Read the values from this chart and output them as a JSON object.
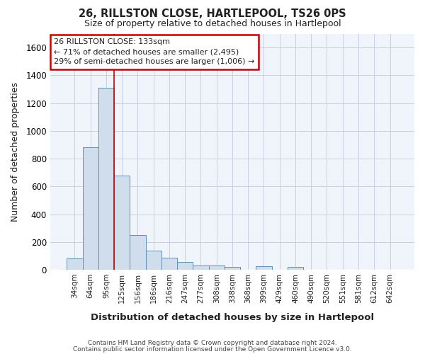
{
  "title": "26, RILLSTON CLOSE, HARTLEPOOL, TS26 0PS",
  "subtitle": "Size of property relative to detached houses in Hartlepool",
  "xlabel": "Distribution of detached houses by size in Hartlepool",
  "ylabel": "Number of detached properties",
  "categories": [
    "34sqm",
    "64sqm",
    "95sqm",
    "125sqm",
    "156sqm",
    "186sqm",
    "216sqm",
    "247sqm",
    "277sqm",
    "308sqm",
    "338sqm",
    "368sqm",
    "399sqm",
    "429sqm",
    "460sqm",
    "490sqm",
    "520sqm",
    "551sqm",
    "581sqm",
    "612sqm",
    "642sqm"
  ],
  "values": [
    80,
    880,
    1310,
    680,
    250,
    140,
    85,
    55,
    30,
    30,
    20,
    0,
    25,
    0,
    20,
    0,
    0,
    0,
    0,
    0,
    0
  ],
  "bar_color": "#cfdded",
  "bar_edge_color": "#6090b0",
  "bar_width": 1.0,
  "red_line_x": 2.5,
  "annotation_line1": "26 RILLSTON CLOSE: 133sqm",
  "annotation_line2": "← 71% of detached houses are smaller (2,495)",
  "annotation_line3": "29% of semi-detached houses are larger (1,006) →",
  "annotation_box_color": "#ffffff",
  "annotation_box_edge_color": "#cc0000",
  "ylim": [
    0,
    1700
  ],
  "yticks": [
    0,
    200,
    400,
    600,
    800,
    1000,
    1200,
    1400,
    1600
  ],
  "grid_color": "#c8cfe0",
  "bg_color": "#f0f4fb",
  "text_color": "#222222",
  "footer_line1": "Contains HM Land Registry data © Crown copyright and database right 2024.",
  "footer_line2": "Contains public sector information licensed under the Open Government Licence v3.0."
}
